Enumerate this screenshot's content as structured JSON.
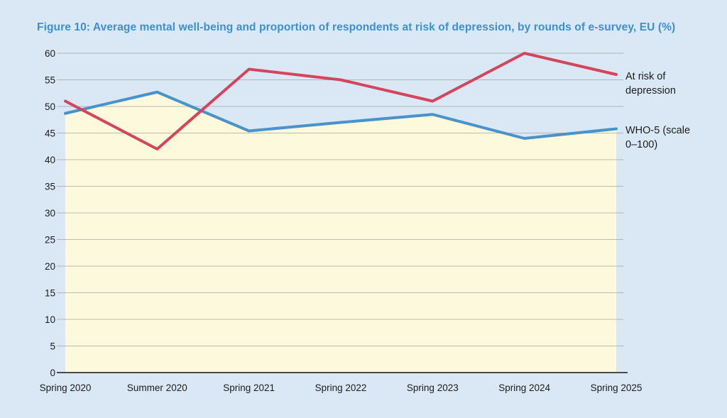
{
  "figure": {
    "title": "Figure 10: Average mental well-being and proportion of respondents at risk of depression, by rounds of e-survey, EU (%)"
  },
  "chart_data": {
    "type": "line",
    "title": "Figure 10: Average mental well-being and proportion of respondents at risk of depression, by rounds of e-survey, EU (%)",
    "categories": [
      "Spring 2020",
      "Summer 2020",
      "Spring 2021",
      "Spring 2022",
      "Spring 2023",
      "Spring 2024",
      "Spring 2025"
    ],
    "series": [
      {
        "name": "At risk of depression",
        "color": "#d4455c",
        "values": [
          51,
          42,
          57,
          55,
          51,
          60,
          56
        ]
      },
      {
        "name": "WHO-5 (scale 0–100)",
        "color": "#4a92ca",
        "values": [
          48.7,
          52.7,
          45.4,
          47,
          48.5,
          44,
          45.8
        ],
        "area_fill": "#fcf9dc"
      }
    ],
    "xlabel": "",
    "ylabel": "",
    "ylim": [
      0,
      60
    ],
    "ytick_step": 5,
    "grid": true,
    "legend_position": "right",
    "colors": {
      "background": "#d9e8f4",
      "plot_area_fill": "#fcf9dc",
      "gridline": "#9a9a9a",
      "axis_line": "#4a4a4a",
      "title": "#3d8fd1",
      "text": "#1b1b1b"
    }
  }
}
